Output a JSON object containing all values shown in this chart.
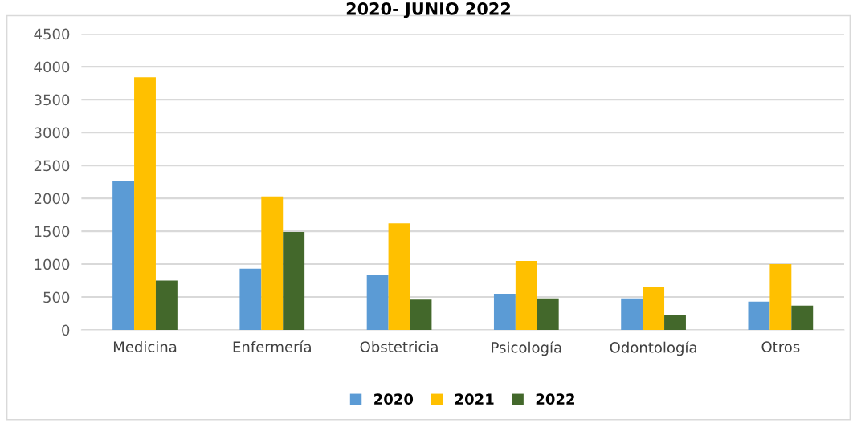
{
  "chart_data": {
    "type": "bar",
    "title": "2020- JUNIO 2022",
    "categories": [
      "Medicina",
      "Enfermería",
      "Obstetricia",
      "Psicología",
      "Odontología",
      "Otros"
    ],
    "series": [
      {
        "name": "2020",
        "color": "#5b9bd5",
        "values": [
          2270,
          930,
          830,
          550,
          480,
          430
        ]
      },
      {
        "name": "2021",
        "color": "#ffc000",
        "values": [
          3840,
          2030,
          1620,
          1050,
          660,
          1000
        ]
      },
      {
        "name": "2022",
        "color": "#43682b",
        "values": [
          750,
          1490,
          460,
          480,
          220,
          370
        ]
      }
    ],
    "ylim": [
      0,
      4500
    ],
    "yticks": [
      0,
      500,
      1000,
      1500,
      2000,
      2500,
      3000,
      3500,
      4000,
      4500
    ],
    "grid": "y",
    "legend": "bottom"
  }
}
